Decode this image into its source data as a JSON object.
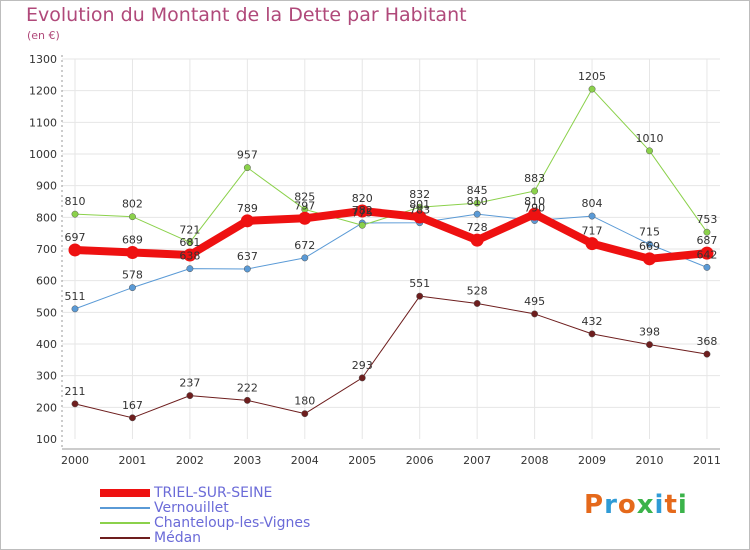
{
  "title": "Evolution du Montant de la Dette par Habitant",
  "unit": "(en €)",
  "logo": "Proxiti",
  "colors": {
    "title": "#b0497a",
    "axis": "#9a9a9a",
    "grid": "#e6e6e6",
    "label": "#333333",
    "legend_text": "#6b6bd8"
  },
  "chart_data": {
    "type": "line",
    "title": "Evolution du Montant de la Dette par Habitant",
    "categories": [
      "2000",
      "2001",
      "2002",
      "2003",
      "2004",
      "2005",
      "2006",
      "2007",
      "2008",
      "2009",
      "2010",
      "2011"
    ],
    "ylim": [
      100,
      1300
    ],
    "yticks": [
      100,
      200,
      300,
      400,
      500,
      600,
      700,
      800,
      900,
      1000,
      1100,
      1200,
      1300
    ],
    "grid": true,
    "legend_position": "bottom-left",
    "series": [
      {
        "name": "Médan",
        "color": "#6e1e1e",
        "width": 1,
        "values": [
          211,
          167,
          237,
          222,
          180,
          293,
          551,
          528,
          495,
          432,
          398,
          368
        ]
      },
      {
        "name": "Vernouillet",
        "color": "#5a9ad6",
        "width": 1,
        "values": [
          511,
          578,
          638,
          637,
          672,
          782,
          783,
          810,
          790,
          804,
          715,
          642
        ]
      },
      {
        "name": "Chanteloup-les-Vignes",
        "color": "#8bd14b",
        "width": 1,
        "values": [
          810,
          802,
          721,
          957,
          825,
          775,
          832,
          845,
          883,
          1205,
          1010,
          753
        ]
      },
      {
        "name": "TRIEL-SUR-SEINE",
        "color": "#ee1111",
        "width": 8,
        "values": [
          697,
          689,
          681,
          789,
          797,
          820,
          801,
          728,
          810,
          717,
          669,
          687
        ]
      }
    ],
    "value_labels": [
      {
        "series": 0,
        "values": [
          "211",
          "167",
          "237",
          "222",
          "180",
          "293",
          "551",
          "528",
          "495",
          "432",
          "398",
          "368"
        ]
      },
      {
        "series": 1,
        "values": [
          "511",
          "578",
          "638",
          "637",
          "672",
          "782",
          "783",
          "810",
          "790",
          "804",
          "715",
          "642"
        ]
      },
      {
        "series": 2,
        "values": [
          "810",
          "802",
          "721",
          "957",
          "825",
          "775",
          "832",
          "845",
          "883",
          "1205",
          "1010",
          "753"
        ]
      },
      {
        "series": 3,
        "values": [
          "697",
          "689",
          "681",
          "789",
          "797",
          "820",
          "801",
          "728",
          "810",
          "717",
          "669",
          "687"
        ]
      }
    ]
  },
  "legend": [
    {
      "name": "TRIEL-SUR-SEINE",
      "color": "#ee1111",
      "width": 8
    },
    {
      "name": "Vernouillet",
      "color": "#5a9ad6",
      "width": 1
    },
    {
      "name": "Chanteloup-les-Vignes",
      "color": "#8bd14b",
      "width": 1
    },
    {
      "name": "Médan",
      "color": "#6e1e1e",
      "width": 1
    }
  ]
}
